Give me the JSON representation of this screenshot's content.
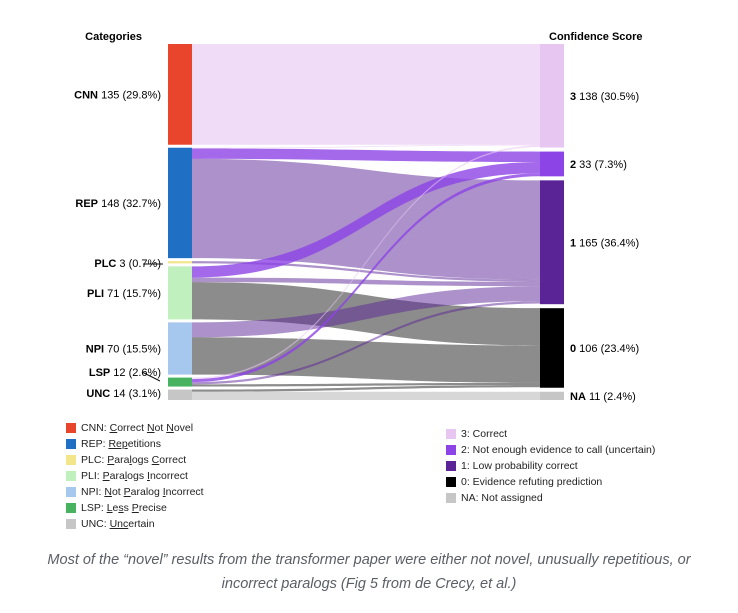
{
  "chart_data": {
    "type": "sankey",
    "left_header": "Categories",
    "right_header": "Confidence Score",
    "caption": "Most of the “novel” results from the transformer paper were either not novel, unusually repetitious, or incorrect paralogs (Fig 5 from de Crecy, et al.)",
    "left_nodes": [
      {
        "id": "CNN",
        "label": "CNN",
        "value": 135,
        "pct": "(29.8%)",
        "color": "#e8452c"
      },
      {
        "id": "REP",
        "label": "REP",
        "value": 148,
        "pct": "(32.7%)",
        "color": "#1f6fc4"
      },
      {
        "id": "PLC",
        "label": "PLC",
        "value": 3,
        "pct": "(0.7%)",
        "color": "#f3e58a"
      },
      {
        "id": "PLI",
        "label": "PLI",
        "value": 71,
        "pct": "(15.7%)",
        "color": "#bff0bd"
      },
      {
        "id": "NPI",
        "label": "NPI",
        "value": 70,
        "pct": "(15.5%)",
        "color": "#a7c8ee"
      },
      {
        "id": "LSP",
        "label": "LSP",
        "value": 12,
        "pct": "(2.6%)",
        "color": "#47b25f"
      },
      {
        "id": "UNC",
        "label": "UNC",
        "value": 14,
        "pct": "(3.1%)",
        "color": "#c6c6c6"
      }
    ],
    "right_nodes": [
      {
        "id": "3",
        "label": "3",
        "value": 138,
        "pct": "(30.5%)",
        "color": "#e7c7f2"
      },
      {
        "id": "2",
        "label": "2",
        "value": 33,
        "pct": "(7.3%)",
        "color": "#8d44e6"
      },
      {
        "id": "1",
        "label": "1",
        "value": 165,
        "pct": "(36.4%)",
        "color": "#5a2496"
      },
      {
        "id": "0",
        "label": "0",
        "value": 106,
        "pct": "(23.4%)",
        "color": "#000000"
      },
      {
        "id": "NA",
        "label": "NA",
        "value": 11,
        "pct": "(2.4%)",
        "color": "#c6c6c6"
      }
    ],
    "links": [
      {
        "source": "CNN",
        "target": "3",
        "value": 135
      },
      {
        "source": "REP",
        "target": "3",
        "value": 1
      },
      {
        "source": "REP",
        "target": "2",
        "value": 14
      },
      {
        "source": "REP",
        "target": "1",
        "value": 133
      },
      {
        "source": "PLC",
        "target": "1",
        "value": 3
      },
      {
        "source": "PLI",
        "target": "2",
        "value": 15
      },
      {
        "source": "PLI",
        "target": "1",
        "value": 6
      },
      {
        "source": "PLI",
        "target": "0",
        "value": 50
      },
      {
        "source": "NPI",
        "target": "1",
        "value": 20
      },
      {
        "source": "NPI",
        "target": "0",
        "value": 50
      },
      {
        "source": "LSP",
        "target": "3",
        "value": 2
      },
      {
        "source": "LSP",
        "target": "2",
        "value": 4
      },
      {
        "source": "LSP",
        "target": "1",
        "value": 3
      },
      {
        "source": "LSP",
        "target": "0",
        "value": 3
      },
      {
        "source": "UNC",
        "target": "0",
        "value": 3
      },
      {
        "source": "UNC",
        "target": "NA",
        "value": 11
      }
    ],
    "left_legend": [
      {
        "color": "#e8452c",
        "code": "CNN",
        "parts": [
          [
            "",
            ""
          ],
          [
            "C",
            "ul"
          ],
          [
            "orrect ",
            ""
          ],
          [
            "N",
            "ul"
          ],
          [
            "ot ",
            ""
          ],
          [
            "N",
            "ul"
          ],
          [
            "ovel",
            ""
          ]
        ]
      },
      {
        "color": "#1f6fc4",
        "code": "REP",
        "parts": [
          [
            "",
            ""
          ],
          [
            "Rep",
            "ul"
          ],
          [
            "etitions",
            ""
          ]
        ]
      },
      {
        "color": "#f3e58a",
        "code": "PLC",
        "parts": [
          [
            "",
            ""
          ],
          [
            "P",
            "ul"
          ],
          [
            "ara",
            ""
          ],
          [
            "l",
            "ul"
          ],
          [
            "ogs ",
            ""
          ],
          [
            "C",
            "ul"
          ],
          [
            "orrect",
            ""
          ]
        ]
      },
      {
        "color": "#bff0bd",
        "code": "PLI",
        "parts": [
          [
            "",
            ""
          ],
          [
            "P",
            "ul"
          ],
          [
            "ara",
            ""
          ],
          [
            "l",
            "ul"
          ],
          [
            "ogs ",
            ""
          ],
          [
            "I",
            "ul"
          ],
          [
            "ncorrect",
            ""
          ]
        ]
      },
      {
        "color": "#a7c8ee",
        "code": "NPI",
        "parts": [
          [
            "",
            ""
          ],
          [
            "N",
            "ul"
          ],
          [
            "ot ",
            ""
          ],
          [
            "P",
            "ul"
          ],
          [
            "aralog ",
            ""
          ],
          [
            "I",
            "ul"
          ],
          [
            "ncorrect",
            ""
          ]
        ]
      },
      {
        "color": "#47b25f",
        "code": "LSP",
        "parts": [
          [
            "",
            ""
          ],
          [
            "L",
            "ul"
          ],
          [
            "e",
            ""
          ],
          [
            "s",
            "ul"
          ],
          [
            "s ",
            ""
          ],
          [
            "P",
            "ul"
          ],
          [
            "recise",
            ""
          ]
        ]
      },
      {
        "color": "#c6c6c6",
        "code": "UNC",
        "parts": [
          [
            "",
            ""
          ],
          [
            "Unc",
            "ul"
          ],
          [
            "ertain",
            ""
          ]
        ]
      }
    ],
    "right_legend": [
      {
        "color": "#e7c7f2",
        "text": "3: Correct"
      },
      {
        "color": "#8d44e6",
        "text": "2: Not enough evidence to call (uncertain)"
      },
      {
        "color": "#5a2496",
        "text": "1: Low probability correct"
      },
      {
        "color": "#000000",
        "text": "0: Evidence refuting prediction"
      },
      {
        "color": "#c6c6c6",
        "text": "NA: Not assigned"
      }
    ]
  }
}
